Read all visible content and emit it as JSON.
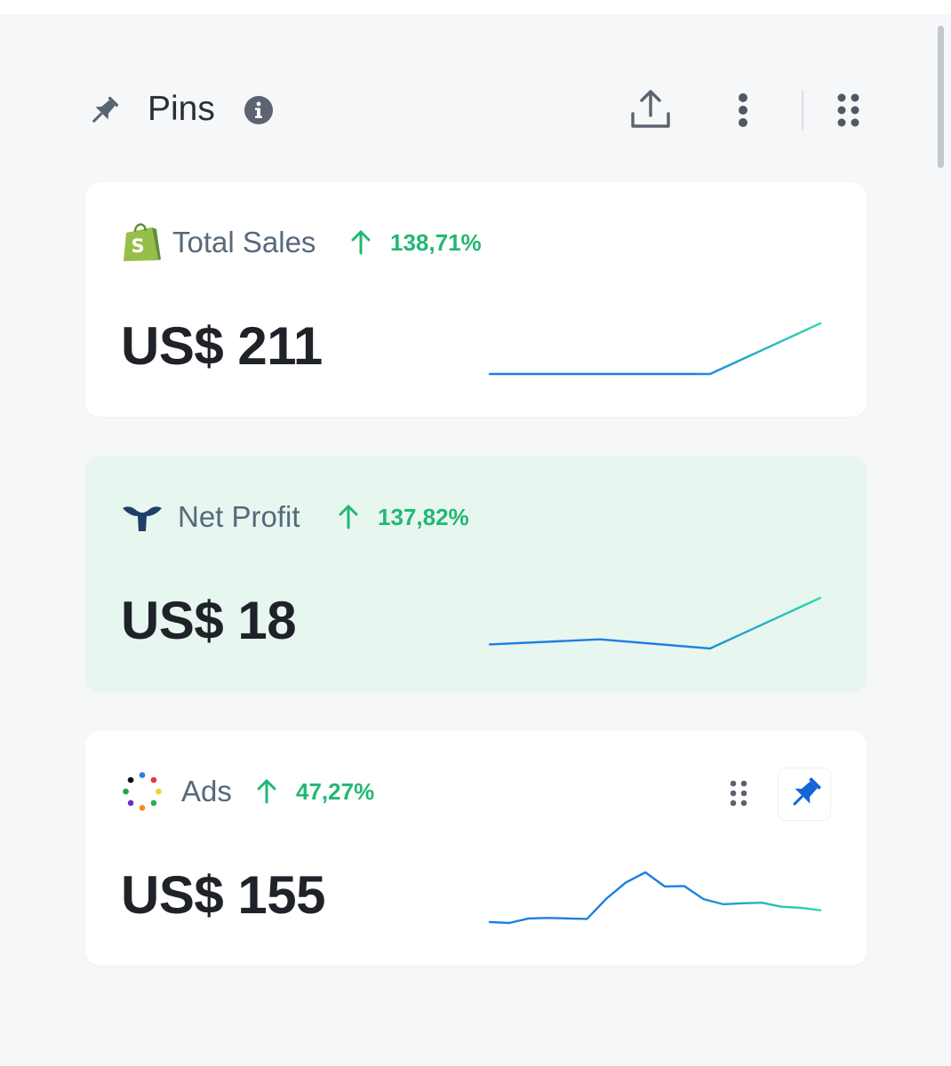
{
  "header": {
    "title": "Pins",
    "icons": {
      "pin": "pin-icon",
      "info": "info-icon",
      "export": "upload-icon",
      "more": "more-vertical-icon",
      "drag": "grid-dots-icon"
    }
  },
  "cards": [
    {
      "title": "Total Sales",
      "icon": "shopify-icon",
      "change": "138,71%",
      "trend": "up",
      "value": "US$ 211",
      "sparkline": [
        0.0,
        0.0,
        0.0,
        1.0
      ],
      "highlighted": false
    },
    {
      "title": "Net Profit",
      "icon": "triple-whale-icon",
      "change": "137,82%",
      "trend": "up",
      "value": "US$ 18",
      "sparkline": [
        0.08,
        0.18,
        0.0,
        1.0
      ],
      "highlighted": true
    },
    {
      "title": "Ads",
      "icon": "ads-dots-icon",
      "change": "47,27%",
      "trend": "up",
      "value": "US$ 155",
      "sparkline": [
        0.02,
        0.0,
        0.09,
        0.1,
        0.09,
        0.08,
        0.48,
        0.8,
        1.0,
        0.72,
        0.73,
        0.47,
        0.37,
        0.39,
        0.4,
        0.32,
        0.3,
        0.25
      ],
      "highlighted": false,
      "actions": {
        "drag": "drag-handle-icon",
        "pin": "pin-filled-icon"
      }
    }
  ],
  "colors": {
    "accent_green": "#22b873",
    "spark_start": "#1c7fe0",
    "spark_end": "#2edca8",
    "highlight_card": "#e8f6f0",
    "pin_active": "#1565d8"
  }
}
